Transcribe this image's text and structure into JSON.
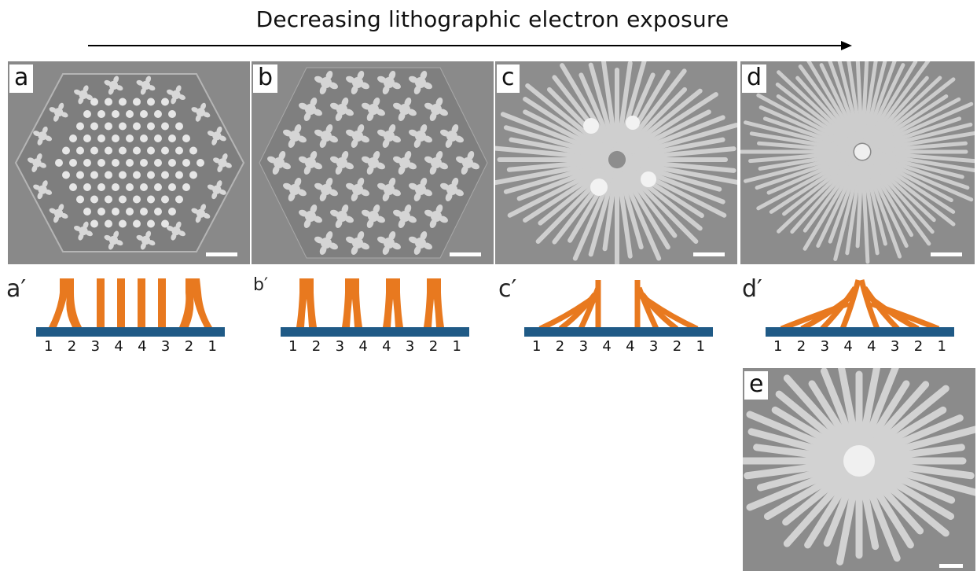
{
  "title": "Decreasing lithographic electron exposure",
  "panels": [
    {
      "label": "a"
    },
    {
      "label": "b"
    },
    {
      "label": "c"
    },
    {
      "label": "d"
    },
    {
      "label": "e"
    }
  ],
  "schematics": [
    {
      "label": "a′",
      "numbers": [
        "1",
        "2",
        "3",
        "4",
        "4",
        "3",
        "2",
        "1"
      ]
    },
    {
      "label": "b′",
      "numbers": [
        "1",
        "2",
        "3",
        "4",
        "4",
        "3",
        "2",
        "1"
      ]
    },
    {
      "label": "c′",
      "numbers": [
        "1",
        "2",
        "3",
        "4",
        "4",
        "3",
        "2",
        "1"
      ]
    },
    {
      "label": "d′",
      "numbers": [
        "1",
        "2",
        "3",
        "4",
        "4",
        "3",
        "2",
        "1"
      ]
    }
  ],
  "colors": {
    "pillar": "#e8791f",
    "substrate": "#1f5a86",
    "sem_bg": "#8a8a8a"
  }
}
